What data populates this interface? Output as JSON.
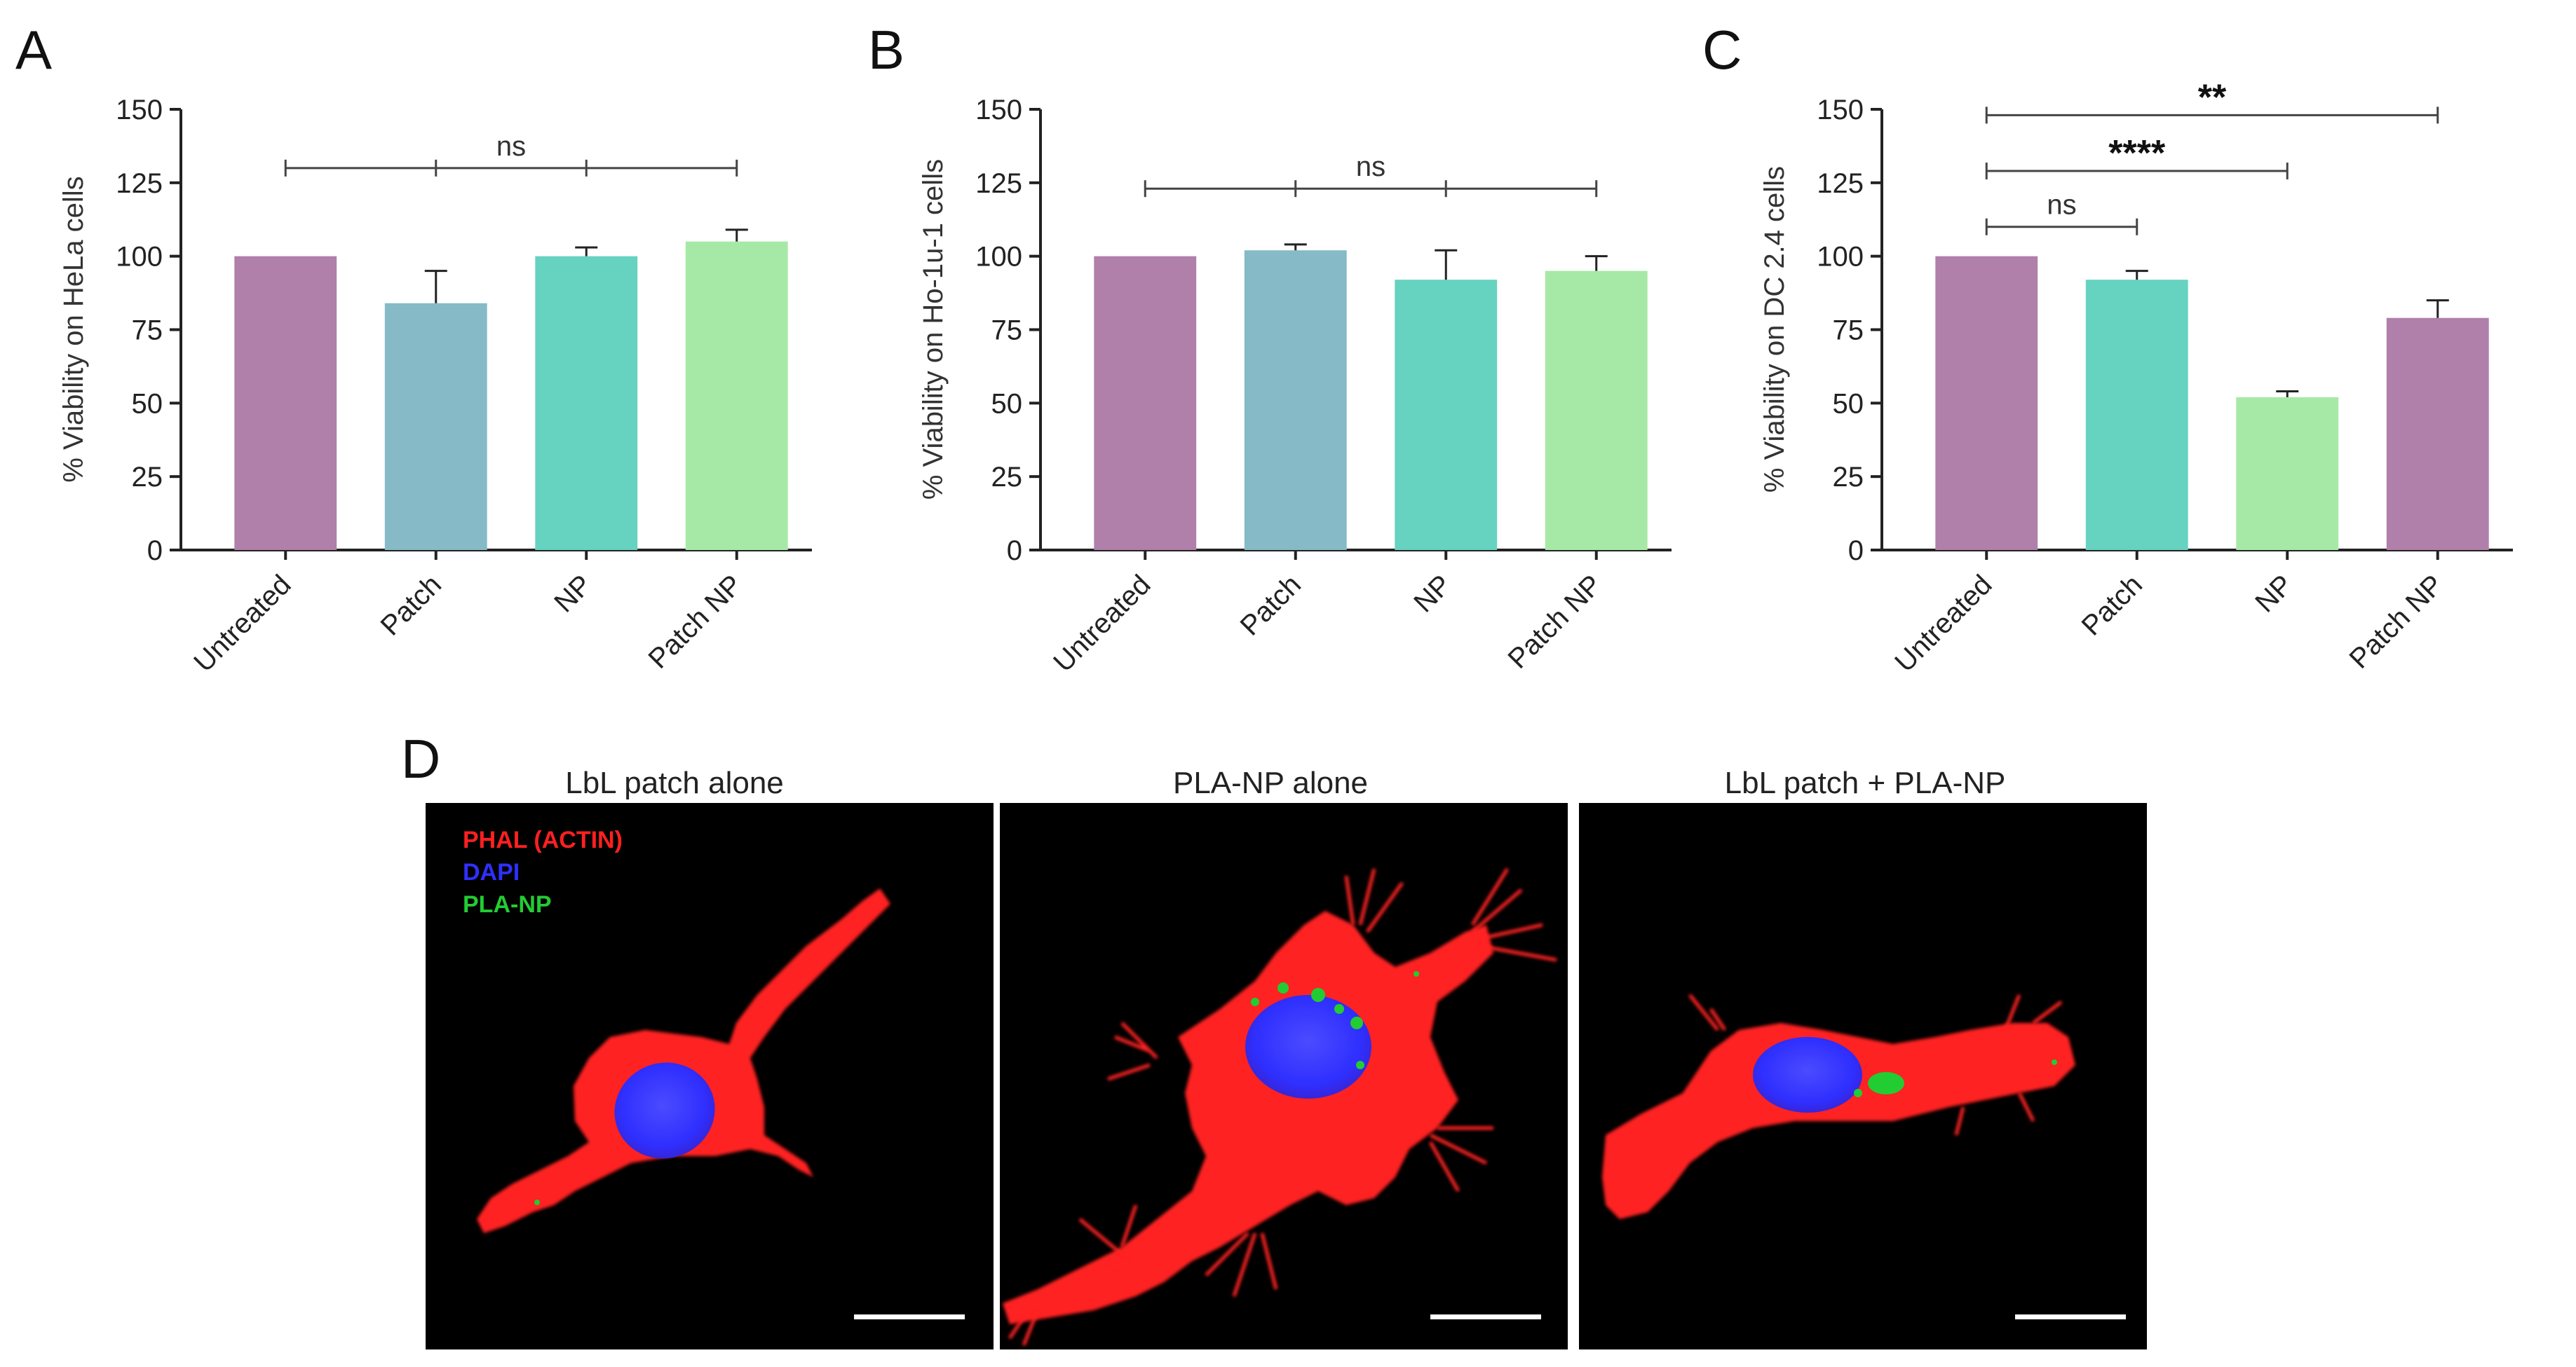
{
  "colors": {
    "purple": "#b07faa",
    "steel": "#85bac6",
    "teal": "#66d2c0",
    "green": "#a6e9a6",
    "axis": "#222222",
    "actin": "#ff2020",
    "dapi": "#2f2fff",
    "np": "#22cc33",
    "scalebar": "#ffffff"
  },
  "panels": {
    "a": {
      "letter": "A"
    },
    "b": {
      "letter": "B"
    },
    "c": {
      "letter": "C"
    },
    "d": {
      "letter": "D",
      "images": [
        {
          "title": "LbL patch alone"
        },
        {
          "title": "PLA-NP alone"
        },
        {
          "title": "LbL patch + PLA-NP"
        }
      ],
      "legend": [
        {
          "label": "PHAL (ACTIN)",
          "color": "#ff2020"
        },
        {
          "label": "DAPI",
          "color": "#2f2fff"
        },
        {
          "label": "PLA-NP",
          "color": "#22cc33"
        }
      ]
    }
  },
  "chart_data": [
    {
      "type": "bar",
      "panel": "A",
      "title": "",
      "xlabel": "",
      "ylabel": "% Viability on HeLa cells",
      "categories": [
        "Untreated",
        "Patch",
        "NP",
        "Patch NP"
      ],
      "values": [
        100,
        84,
        100,
        105
      ],
      "errors": [
        0,
        11,
        3,
        4
      ],
      "bar_colors": [
        "#b07faa",
        "#85bac6",
        "#66d2c0",
        "#a6e9a6"
      ],
      "ylim": [
        0,
        150
      ],
      "yticks": [
        0,
        25,
        50,
        75,
        100,
        125,
        150
      ],
      "grid": false,
      "significance": [
        {
          "from": 0,
          "to": 3,
          "y": 130,
          "label": "ns",
          "ticks": [
            0,
            1,
            2,
            3
          ]
        }
      ]
    },
    {
      "type": "bar",
      "panel": "B",
      "title": "",
      "xlabel": "",
      "ylabel": "% Viability on Ho-1u-1 cells",
      "categories": [
        "Untreated",
        "Patch",
        "NP",
        "Patch NP"
      ],
      "values": [
        100,
        102,
        92,
        95
      ],
      "errors": [
        0,
        2,
        10,
        5
      ],
      "bar_colors": [
        "#b07faa",
        "#85bac6",
        "#66d2c0",
        "#a6e9a6"
      ],
      "ylim": [
        0,
        150
      ],
      "yticks": [
        0,
        25,
        50,
        75,
        100,
        125,
        150
      ],
      "grid": false,
      "significance": [
        {
          "from": 0,
          "to": 3,
          "y": 123,
          "label": "ns",
          "ticks": [
            0,
            1,
            2,
            3
          ]
        }
      ]
    },
    {
      "type": "bar",
      "panel": "C",
      "title": "",
      "xlabel": "",
      "ylabel": "% Viability on DC 2.4 cells",
      "categories": [
        "Untreated",
        "Patch",
        "NP",
        "Patch NP"
      ],
      "values": [
        100,
        92,
        52,
        79
      ],
      "errors": [
        0,
        3,
        2,
        6
      ],
      "bar_colors": [
        "#b07faa",
        "#66d2c0",
        "#a6e9a6",
        "#b07faa"
      ],
      "ylim": [
        0,
        150
      ],
      "yticks": [
        0,
        25,
        50,
        75,
        100,
        125,
        150
      ],
      "grid": false,
      "significance": [
        {
          "from": 0,
          "to": 1,
          "y": 110,
          "label": "ns",
          "ticks": [
            0,
            1
          ]
        },
        {
          "from": 0,
          "to": 2,
          "y": 129,
          "label": "****",
          "ticks": [
            0,
            2
          ]
        },
        {
          "from": 0,
          "to": 3,
          "y": 148,
          "label": "**",
          "ticks": [
            0,
            3
          ]
        }
      ]
    }
  ]
}
